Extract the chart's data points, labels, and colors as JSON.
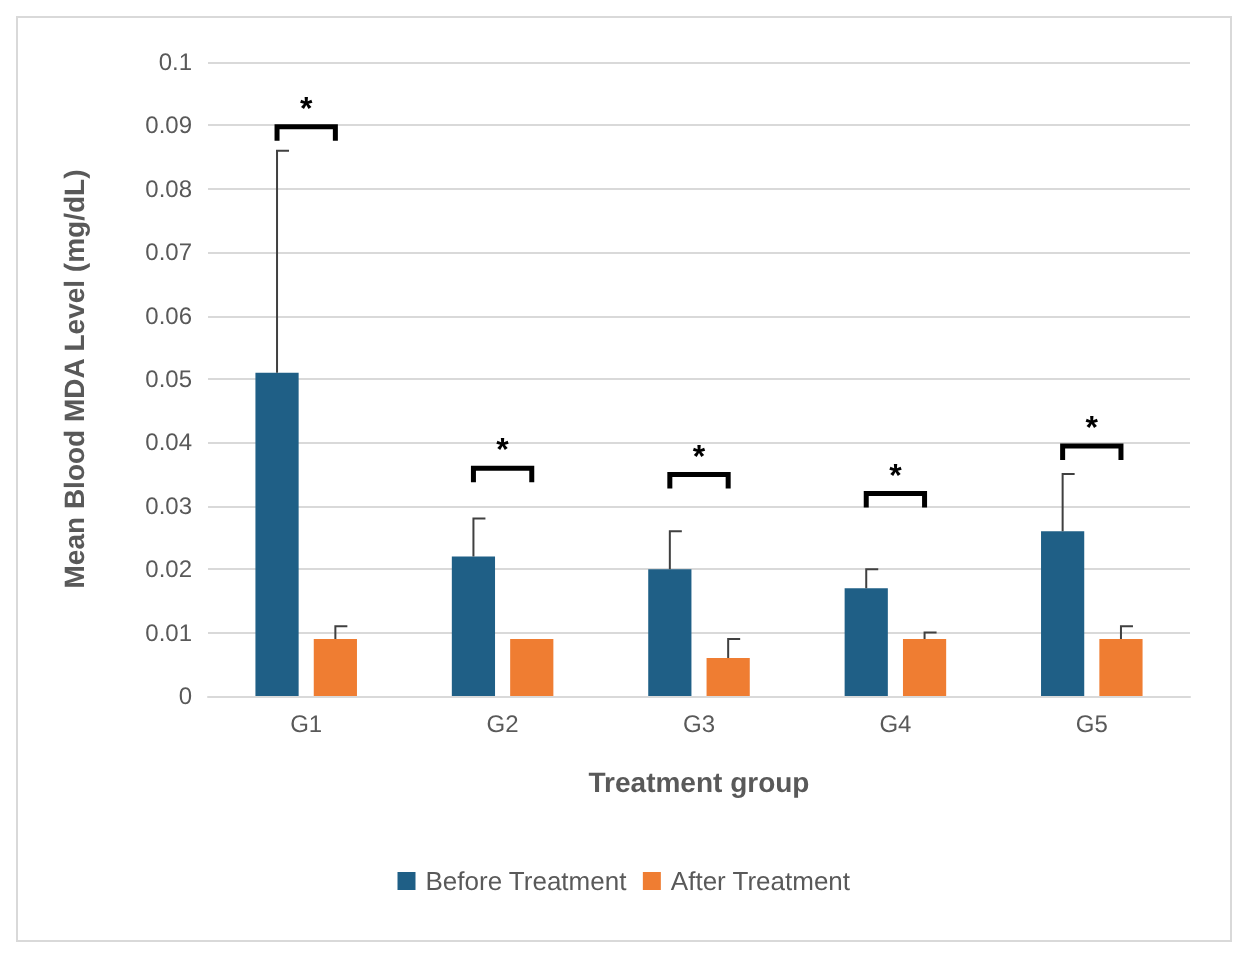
{
  "chart_data": {
    "type": "bar",
    "xlabel": "Treatment group",
    "ylabel": "Mean Blood MDA Level (mg/dL)",
    "categories": [
      "G1",
      "G2",
      "G3",
      "G4",
      "G5"
    ],
    "series": [
      {
        "name": "Before Treatment",
        "color": "#1f5f86",
        "values": [
          0.051,
          0.022,
          0.02,
          0.017,
          0.026
        ],
        "errors": [
          [
            0.051,
            0.086
          ],
          [
            0.022,
            0.028
          ],
          [
            0.02,
            0.026
          ],
          [
            0.017,
            0.02
          ],
          [
            0.026,
            0.035
          ]
        ]
      },
      {
        "name": "After Treatment",
        "color": "#ef7d32",
        "values": [
          0.009,
          0.009,
          0.006,
          0.009,
          0.009
        ],
        "errors": [
          [
            0.009,
            0.011
          ],
          null,
          [
            0.006,
            0.009
          ],
          [
            0.009,
            0.01
          ],
          [
            0.009,
            0.011
          ]
        ]
      }
    ],
    "ylim": [
      0,
      0.1
    ],
    "yticks": [
      0,
      0.01,
      0.02,
      0.03,
      0.04,
      0.05,
      0.06,
      0.07,
      0.08,
      0.09,
      0.1
    ],
    "grid": "y",
    "legend": "bottom",
    "annotations": [
      "*",
      "*",
      "*",
      "*",
      "*"
    ]
  }
}
